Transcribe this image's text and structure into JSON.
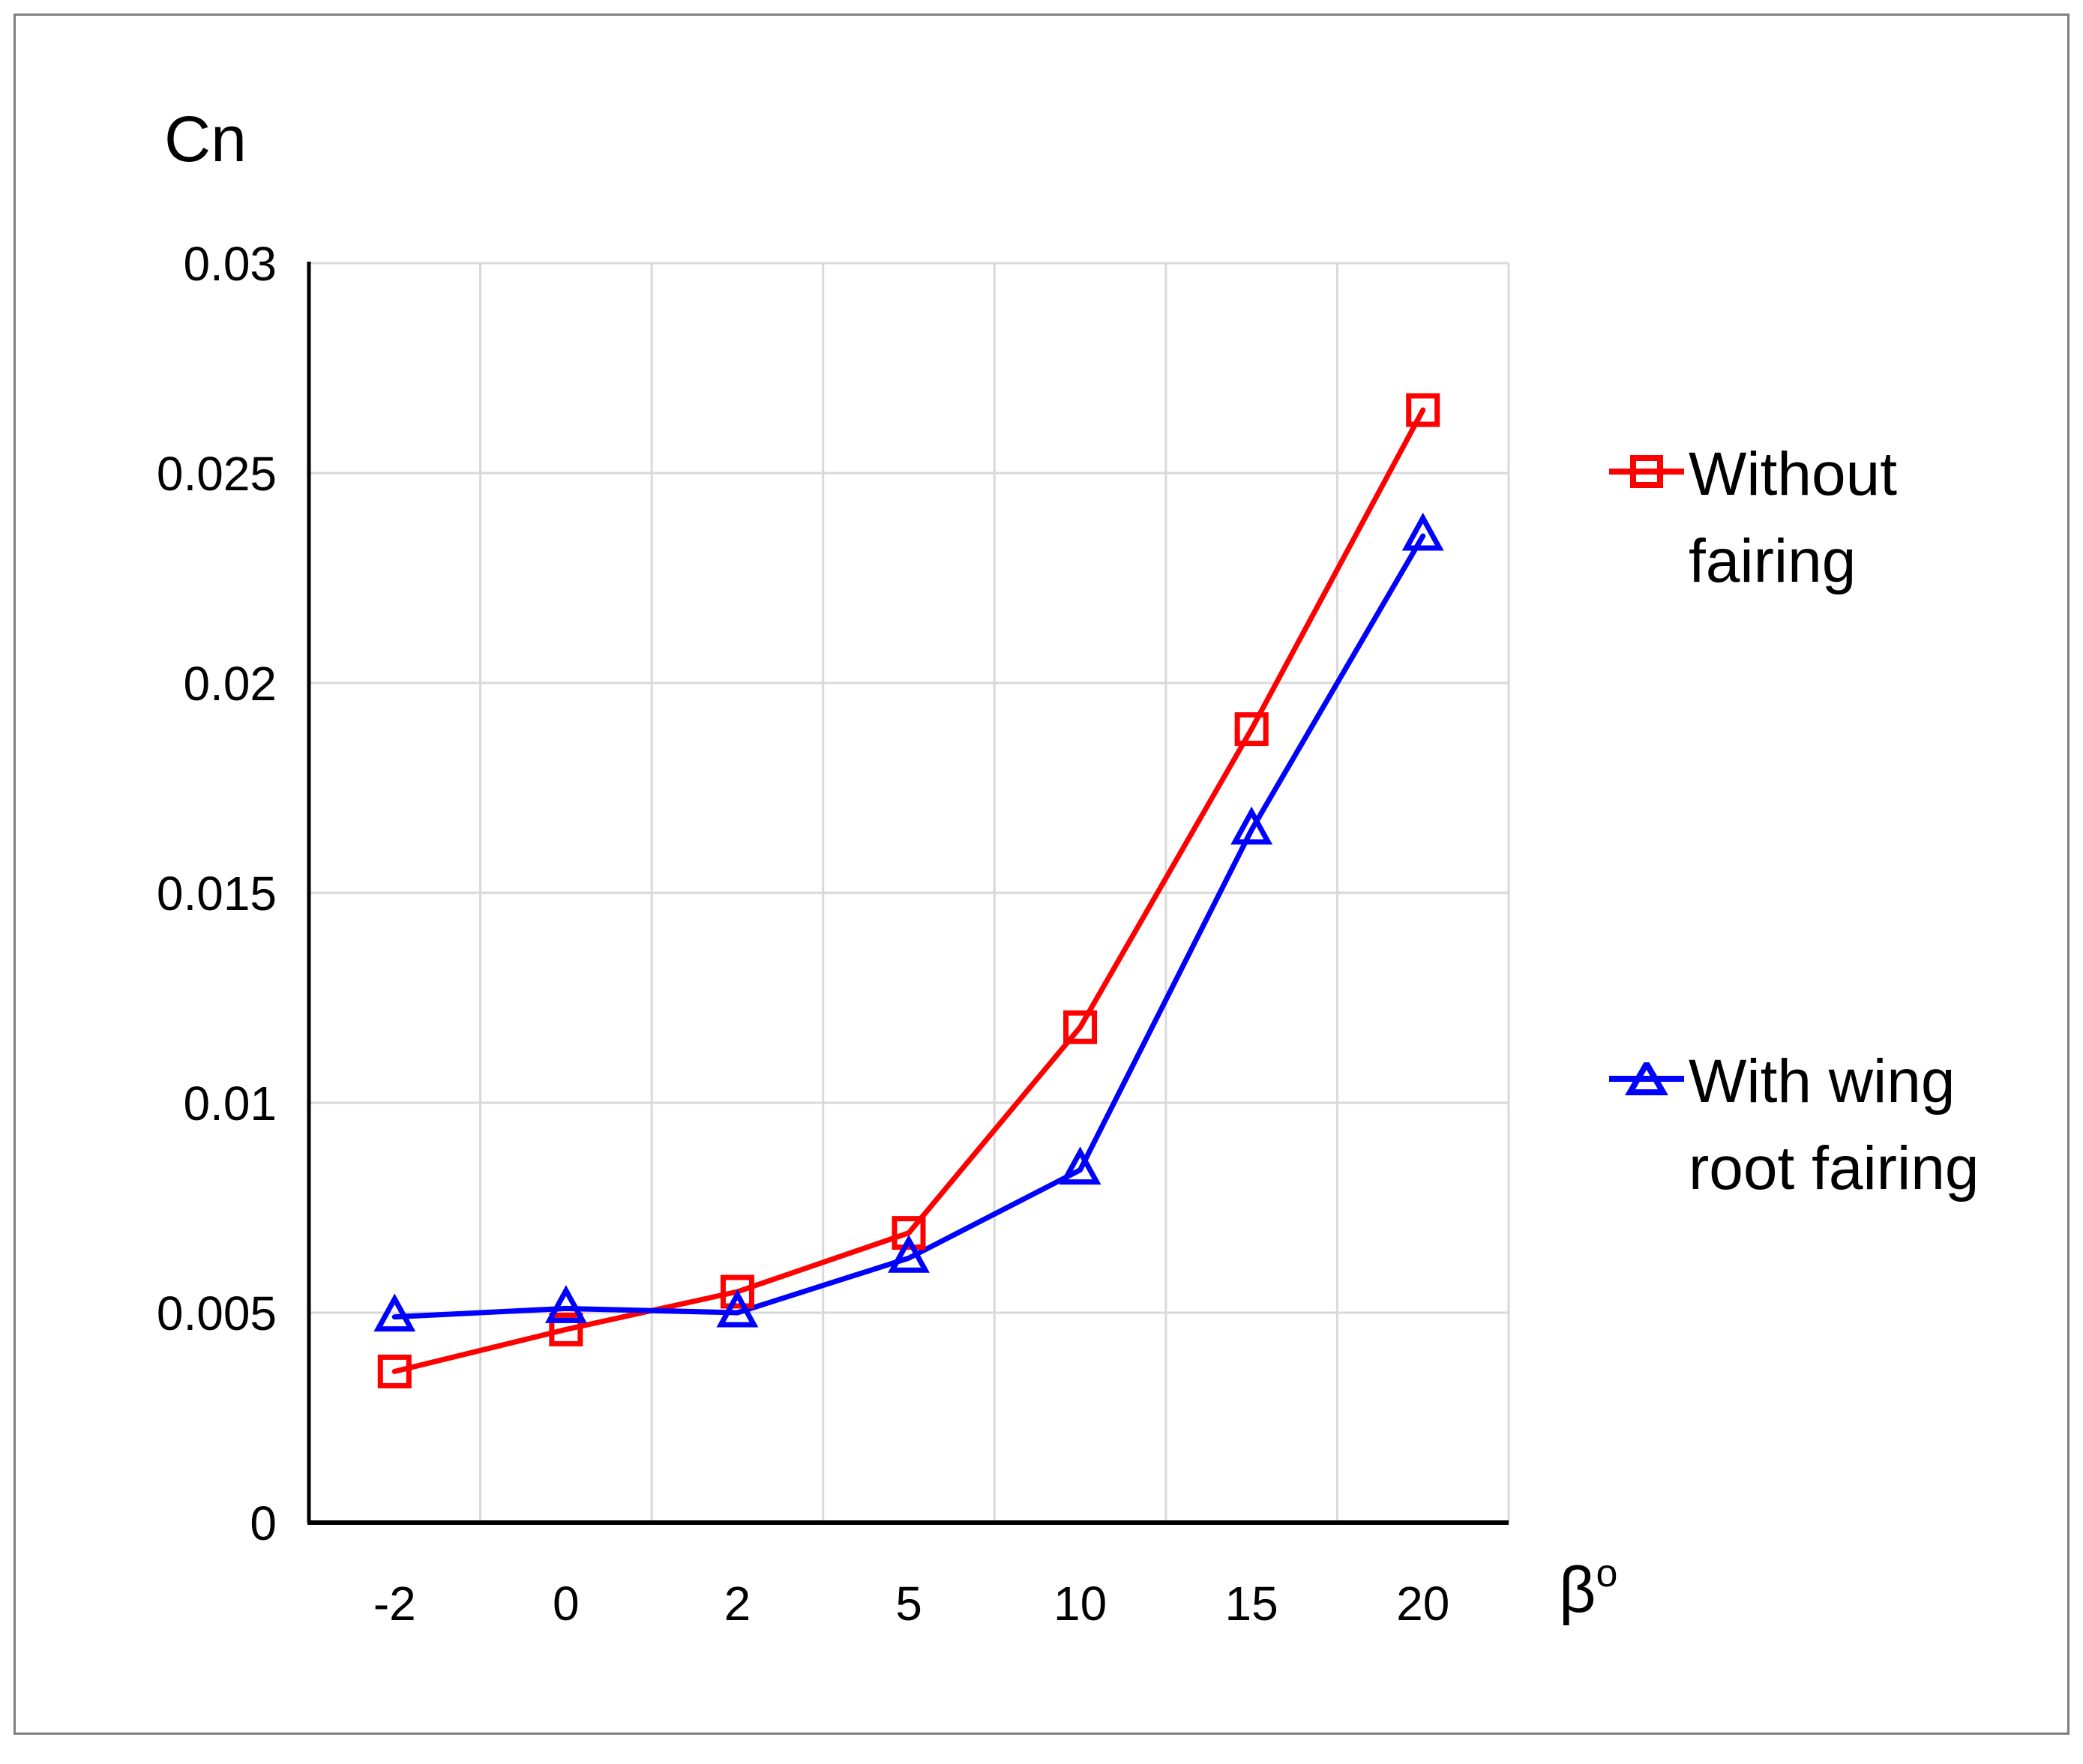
{
  "figure": {
    "title": "Cn",
    "xaxis_title": "β",
    "xaxis_title_sup": "o"
  },
  "chart_data": {
    "type": "line",
    "categories": [
      "-2",
      "0",
      "2",
      "5",
      "10",
      "15",
      "20"
    ],
    "series": [
      {
        "name": "Without fairing",
        "color": "#fe0000",
        "marker": "square",
        "values": [
          0.0036,
          0.0046,
          0.0055,
          0.0069,
          0.0118,
          0.0189,
          0.0265
        ]
      },
      {
        "name": "With wing root fairing",
        "color": "#0000fe",
        "marker": "triangle",
        "values": [
          0.0049,
          0.0051,
          0.005,
          0.0063,
          0.0084,
          0.0165,
          0.0235
        ]
      }
    ],
    "title": "",
    "ylabel": "Cn",
    "xlabel": "β°",
    "ylim": [
      0,
      0.03
    ],
    "ytick_step": 0.005,
    "ytick_labels": [
      "0",
      "0.005",
      "0.01",
      "0.015",
      "0.02",
      "0.025",
      "0.03"
    ],
    "grid": true,
    "legend_position": "right"
  },
  "legend": {
    "items": [
      {
        "lines": [
          "Without",
          "fairing"
        ],
        "color": "#fe0000",
        "marker": "square"
      },
      {
        "lines": [
          "With wing",
          "root fairing"
        ],
        "color": "#0000fe",
        "marker": "triangle"
      }
    ]
  },
  "colors": {
    "background": "#ffffff",
    "frame_border": "#7f7f7f",
    "gridline": "#d9d9d9",
    "axis": "#000000",
    "text": "#000000"
  }
}
